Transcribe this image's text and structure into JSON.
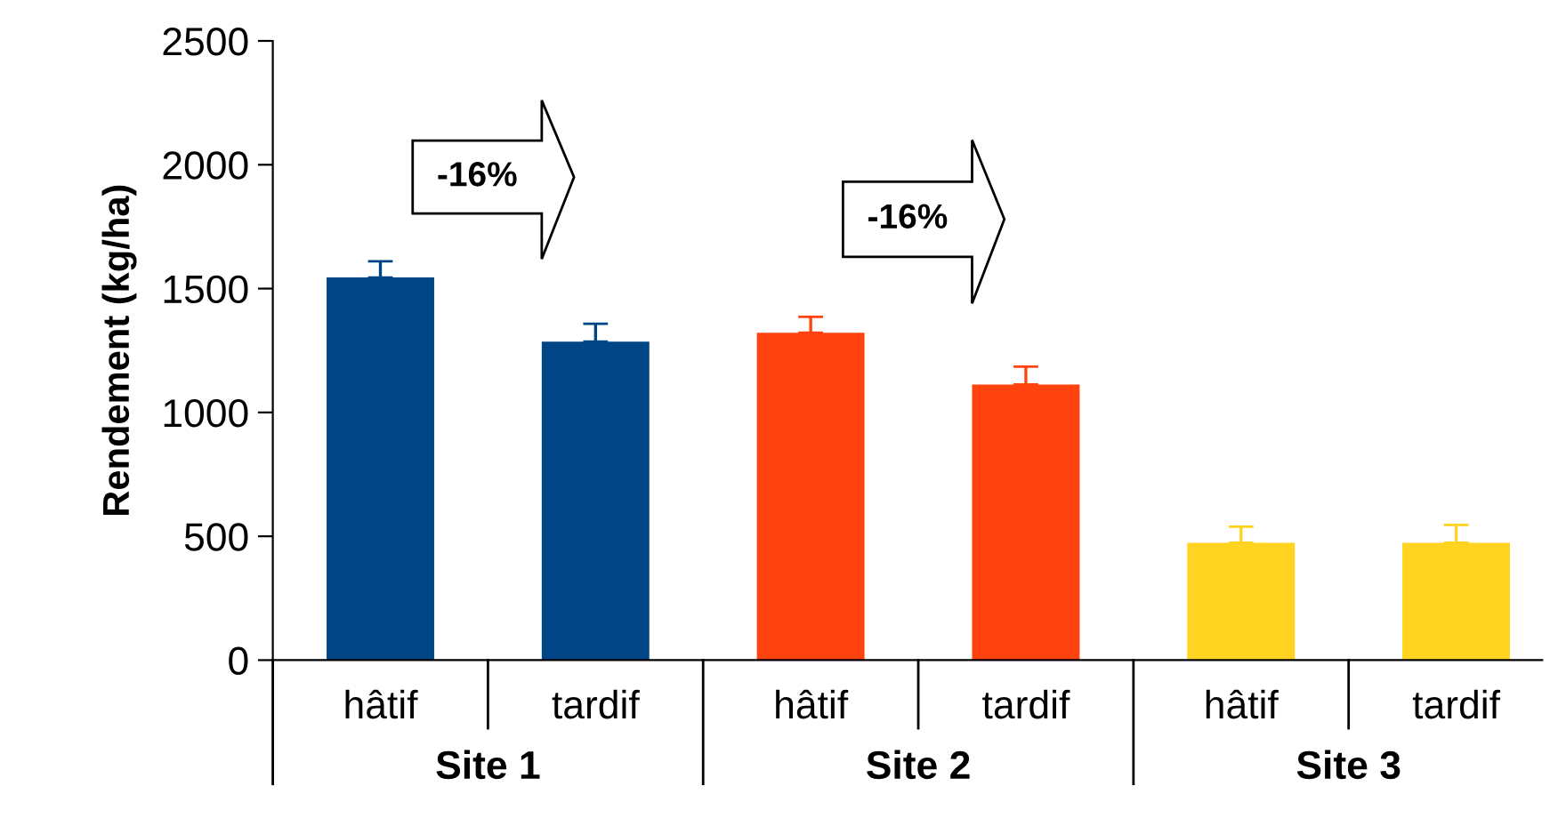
{
  "chart_data": {
    "type": "bar",
    "categories": [
      "hâtif",
      "tardif",
      "hâtif",
      "tardif",
      "hâtif",
      "tardif"
    ],
    "values": [
      1545,
      1286,
      1322,
      1113,
      474,
      474
    ],
    "colors": [
      "#004586",
      "#004586",
      "#ff420e",
      "#ff420e",
      "#ffd320",
      "#ffd320"
    ],
    "errors": [
      [
        1545,
        1610
      ],
      [
        1286,
        1358
      ],
      [
        1322,
        1386
      ],
      [
        1113,
        1185
      ],
      [
        474,
        539
      ],
      [
        474,
        546
      ]
    ],
    "ylabel": "Rendement (kg/ha)",
    "ylim": [
      0,
      2500
    ],
    "yticks": [
      0,
      500,
      1000,
      1500,
      2000,
      2500
    ],
    "grid": false,
    "legend": false,
    "annotations": [
      "-16%",
      "-16%",
      "Site 1",
      "Site 2",
      "Site 3"
    ]
  }
}
